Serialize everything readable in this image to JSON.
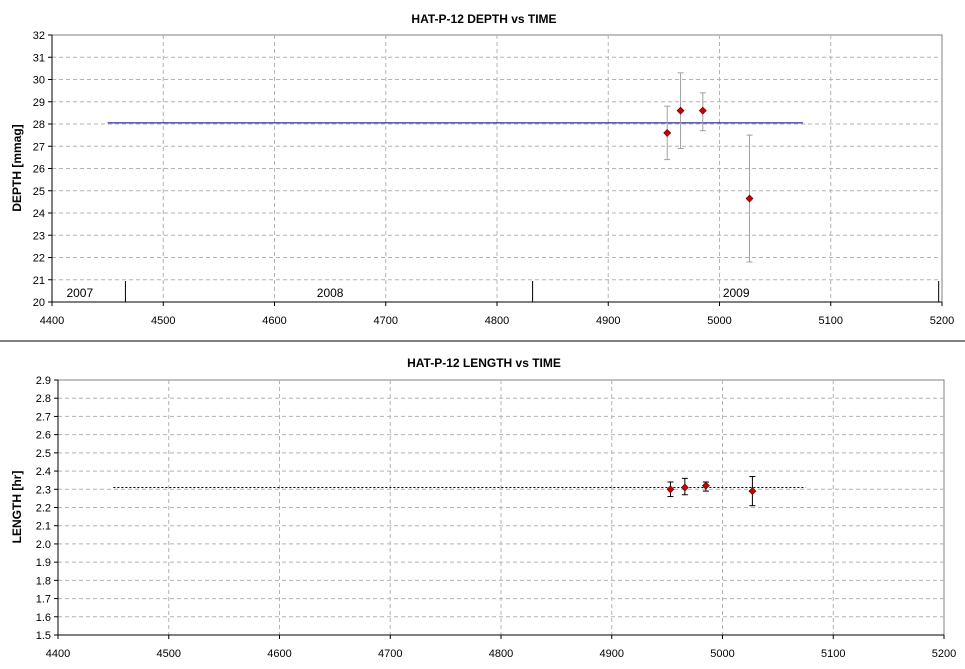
{
  "colors": {
    "fit_line_top": "#00008b",
    "fit_line_bottom": "#006400",
    "marker": "#cc0000",
    "error_bar_top": "#a0a0a0",
    "error_bar_bottom": "#000000",
    "grid": "#b4b4b4",
    "separator": "#000000"
  },
  "chart_data": [
    {
      "type": "scatter",
      "title": "HAT-P-12 DEPTH vs TIME",
      "xlabel": "",
      "ylabel": "DEPTH [mmag]",
      "xlim": [
        4400,
        5200
      ],
      "ylim": [
        20,
        32
      ],
      "xticks": [
        4400,
        4500,
        4600,
        4700,
        4800,
        4900,
        5000,
        5100,
        5200
      ],
      "yticks": [
        20,
        21,
        22,
        23,
        24,
        25,
        26,
        27,
        28,
        29,
        30,
        31,
        32
      ],
      "ytick_labels": [
        "20",
        "21",
        "22",
        "23",
        "24",
        "25",
        "26",
        "27",
        "28",
        "29",
        "30",
        "31",
        "32"
      ],
      "grid": true,
      "points": [
        {
          "x": 4953,
          "y": 27.6,
          "err_low": 26.4,
          "err_high": 28.8
        },
        {
          "x": 4965,
          "y": 28.6,
          "err_low": 26.9,
          "err_high": 30.3
        },
        {
          "x": 4985,
          "y": 28.6,
          "err_low": 27.7,
          "err_high": 29.4
        },
        {
          "x": 5027,
          "y": 24.65,
          "err_low": 21.8,
          "err_high": 27.5
        }
      ],
      "fit_line": {
        "x_start": 4450,
        "x_end": 5075,
        "y": 28.05,
        "style": "solid"
      },
      "year_bands": {
        "boundaries": [
          4466,
          4832,
          5197
        ],
        "labels": [
          {
            "text": "2007",
            "x": 4425
          },
          {
            "text": "2008",
            "x": 4650
          },
          {
            "text": "2009",
            "x": 5015
          }
        ]
      }
    },
    {
      "type": "scatter",
      "title": "HAT-P-12 LENGTH vs TIME",
      "xlabel": "",
      "ylabel": "LENGTH [hr]",
      "xlim": [
        4400,
        5200
      ],
      "ylim": [
        1.5,
        2.9
      ],
      "xticks": [
        4400,
        4500,
        4600,
        4700,
        4800,
        4900,
        5000,
        5100,
        5200
      ],
      "yticks": [
        1.5,
        1.6,
        1.7,
        1.8,
        1.9,
        2.0,
        2.1,
        2.2,
        2.3,
        2.4,
        2.5,
        2.6,
        2.7,
        2.8,
        2.9
      ],
      "ytick_labels": [
        "1.5",
        "1.6",
        "1.7",
        "1.8",
        "1.9",
        "2.0",
        "2.1",
        "2.2",
        "2.3",
        "2.4",
        "2.5",
        "2.6",
        "2.7",
        "2.8",
        "2.9"
      ],
      "grid": true,
      "points": [
        {
          "x": 4953,
          "y": 2.3,
          "err_low": 2.26,
          "err_high": 2.34
        },
        {
          "x": 4966,
          "y": 2.31,
          "err_low": 2.27,
          "err_high": 2.36
        },
        {
          "x": 4985,
          "y": 2.32,
          "err_low": 2.29,
          "err_high": 2.34
        },
        {
          "x": 5027,
          "y": 2.29,
          "err_low": 2.21,
          "err_high": 2.37
        }
      ],
      "fit_line": {
        "x_start": 4450,
        "x_end": 5075,
        "y": 2.31,
        "style": "dotted"
      }
    }
  ]
}
